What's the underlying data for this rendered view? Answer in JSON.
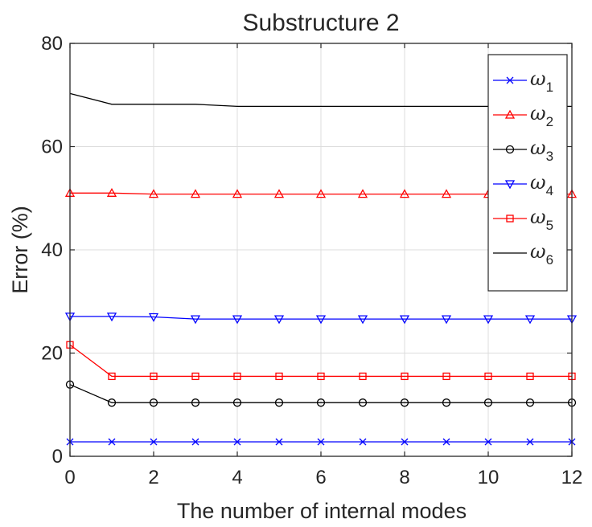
{
  "chart_data": {
    "type": "line",
    "title": "Substructure 2",
    "xlabel": "The number of internal modes",
    "ylabel": "Error (%)",
    "xlim": [
      0,
      12
    ],
    "ylim": [
      0,
      80
    ],
    "xticks": [
      "0",
      "2",
      "4",
      "6",
      "8",
      "10",
      "12"
    ],
    "yticks": [
      "0",
      "20",
      "40",
      "60",
      "80"
    ],
    "grid": true,
    "legend_position": "top-right",
    "x": [
      0,
      1,
      2,
      3,
      4,
      5,
      6,
      7,
      8,
      9,
      10,
      11,
      12
    ],
    "series": [
      {
        "name": "ω1",
        "base": "ω",
        "sub": "1",
        "color": "#0000ff",
        "marker": "x",
        "values": [
          2.8,
          2.8,
          2.8,
          2.8,
          2.8,
          2.8,
          2.8,
          2.8,
          2.8,
          2.8,
          2.8,
          2.8,
          2.8
        ]
      },
      {
        "name": "ω2",
        "base": "ω",
        "sub": "2",
        "color": "#ff0000",
        "marker": "triangle-up",
        "values": [
          51.0,
          51.0,
          50.8,
          50.8,
          50.8,
          50.8,
          50.8,
          50.8,
          50.8,
          50.8,
          50.8,
          50.8,
          50.8
        ]
      },
      {
        "name": "ω3",
        "base": "ω",
        "sub": "3",
        "color": "#000000",
        "marker": "circle",
        "values": [
          13.9,
          10.4,
          10.4,
          10.4,
          10.4,
          10.4,
          10.4,
          10.4,
          10.4,
          10.4,
          10.4,
          10.4,
          10.4
        ]
      },
      {
        "name": "ω4",
        "base": "ω",
        "sub": "4",
        "color": "#0000ff",
        "marker": "triangle-down",
        "values": [
          27.1,
          27.1,
          27.0,
          26.6,
          26.6,
          26.6,
          26.6,
          26.6,
          26.6,
          26.6,
          26.6,
          26.6,
          26.6
        ]
      },
      {
        "name": "ω5",
        "base": "ω",
        "sub": "5",
        "color": "#ff0000",
        "marker": "square",
        "values": [
          21.6,
          15.5,
          15.5,
          15.5,
          15.5,
          15.5,
          15.5,
          15.5,
          15.5,
          15.5,
          15.5,
          15.5,
          15.5
        ]
      },
      {
        "name": "ω6",
        "base": "ω",
        "sub": "6",
        "color": "#000000",
        "marker": "none",
        "values": [
          70.3,
          68.2,
          68.2,
          68.2,
          67.8,
          67.8,
          67.8,
          67.8,
          67.8,
          67.8,
          67.8,
          67.8,
          67.8
        ]
      }
    ]
  }
}
